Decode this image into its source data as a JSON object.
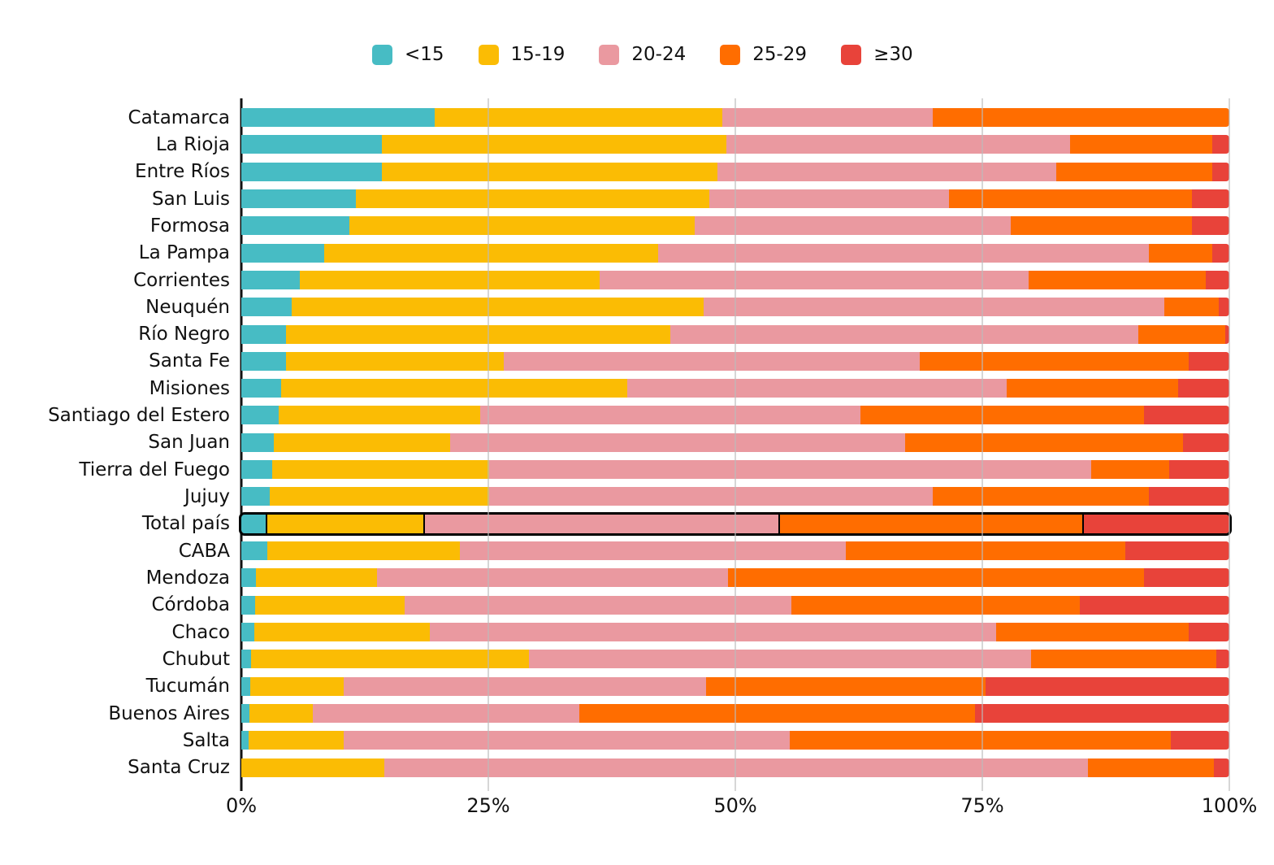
{
  "page": {
    "background": "#ffffff"
  },
  "chart_data": {
    "type": "bar",
    "stacked": true,
    "orientation": "horizontal",
    "title": "",
    "xlabel": "",
    "ylabel": "",
    "unit": "%",
    "xlim": [
      0,
      100
    ],
    "grid": "vertical",
    "grid_color": "#cccccc",
    "axis_color": "#111111",
    "legend_position": "top",
    "highlight_category": "Total país",
    "categories": [
      "Catamarca",
      "La Rioja",
      "Entre Ríos",
      "San Luis",
      "Formosa",
      "La Pampa",
      "Corrientes",
      "Neuquén",
      "Río Negro",
      "Santa Fe",
      "Misiones",
      "Santiago del Estero",
      "San Juan",
      "Tierra del Fuego",
      "Jujuy",
      "Total país",
      "CABA",
      "Mendoza",
      "Córdoba",
      "Chaco",
      "Chubut",
      "Tucumán",
      "Buenos Aires",
      "Salta",
      "Santa Cruz"
    ],
    "series": [
      {
        "name": "<15",
        "color": "#47BCC4",
        "values": [
          19.6,
          14.2,
          14.2,
          11.6,
          10.9,
          8.4,
          5.9,
          5.1,
          4.5,
          4.5,
          4.0,
          3.8,
          3.3,
          3.1,
          2.9,
          2.6,
          2.6,
          1.5,
          1.4,
          1.3,
          1.0,
          0.9,
          0.8,
          0.7,
          0.0
        ]
      },
      {
        "name": "15-19",
        "color": "#FBBC04",
        "values": [
          29.1,
          34.9,
          34.0,
          35.8,
          35.0,
          33.8,
          30.4,
          41.7,
          38.9,
          22.1,
          35.1,
          20.4,
          17.8,
          22.0,
          22.2,
          16.0,
          19.5,
          12.2,
          15.1,
          17.8,
          28.1,
          9.5,
          6.4,
          9.7,
          14.5
        ]
      },
      {
        "name": "20-24",
        "color": "#EA99A0",
        "values": [
          21.3,
          34.8,
          34.3,
          24.2,
          32.0,
          49.7,
          43.4,
          46.6,
          47.4,
          42.1,
          38.4,
          38.5,
          46.1,
          60.9,
          44.9,
          35.9,
          39.1,
          35.6,
          39.2,
          57.3,
          50.8,
          36.6,
          27.0,
          45.1,
          71.2
        ]
      },
      {
        "name": "25-29",
        "color": "#FF6D00",
        "values": [
          30.0,
          14.4,
          15.8,
          24.6,
          18.3,
          6.4,
          17.9,
          5.5,
          8.8,
          27.2,
          17.3,
          28.7,
          28.1,
          7.9,
          21.9,
          30.8,
          28.3,
          42.1,
          29.2,
          19.5,
          18.8,
          28.3,
          40.1,
          38.6,
          12.7
        ]
      },
      {
        "name": "≥30",
        "color": "#E8433A",
        "values": [
          0.0,
          1.7,
          1.7,
          3.8,
          3.8,
          1.7,
          2.4,
          1.1,
          0.4,
          4.1,
          5.2,
          8.6,
          4.7,
          6.1,
          8.1,
          14.7,
          10.5,
          8.6,
          15.1,
          4.1,
          1.3,
          24.7,
          25.7,
          5.9,
          1.6
        ]
      }
    ],
    "x_ticks": [
      {
        "label": "0%",
        "value": 0
      },
      {
        "label": "25%",
        "value": 25
      },
      {
        "label": "50%",
        "value": 50
      },
      {
        "label": "75%",
        "value": 75
      },
      {
        "label": "100%",
        "value": 100
      }
    ]
  }
}
